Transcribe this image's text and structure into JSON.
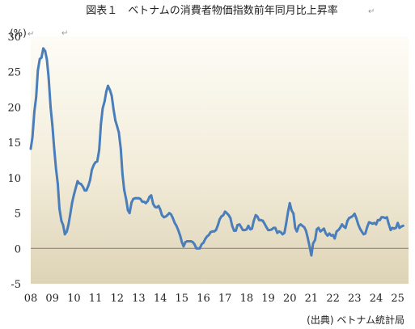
{
  "chart_data": {
    "type": "line",
    "title": "図表１　ベトナムの消費者物価指数前年同月比上昇率",
    "unit_label": "(%)",
    "source": "(出典) ベトナム統計局",
    "x_ticks": [
      "08",
      "09",
      "10",
      "11",
      "12",
      "13",
      "14",
      "15",
      "16",
      "17",
      "18",
      "19",
      "20",
      "21",
      "22",
      "23",
      "24",
      "25"
    ],
    "y_ticks": [
      "30",
      "25",
      "20",
      "15",
      "10",
      "5",
      "0",
      "-5"
    ],
    "ylim": [
      -5,
      30
    ],
    "xlim": [
      2008.0,
      2025.5
    ],
    "grid": false,
    "colors": {
      "line": "#4a7ebb",
      "panel_top": "#fdfcf6",
      "panel_bottom": "#ddd3b6"
    },
    "series": [
      {
        "values": [
          [
            2008.0,
            14.1
          ],
          [
            2008.08,
            15.7
          ],
          [
            2008.17,
            19.4
          ],
          [
            2008.25,
            21.4
          ],
          [
            2008.33,
            25.2
          ],
          [
            2008.42,
            26.8
          ],
          [
            2008.5,
            27.0
          ],
          [
            2008.58,
            28.3
          ],
          [
            2008.67,
            27.9
          ],
          [
            2008.75,
            26.7
          ],
          [
            2008.83,
            24.2
          ],
          [
            2008.92,
            19.9
          ],
          [
            2009.0,
            17.5
          ],
          [
            2009.08,
            14.4
          ],
          [
            2009.17,
            11.3
          ],
          [
            2009.25,
            9.2
          ],
          [
            2009.33,
            5.6
          ],
          [
            2009.42,
            3.9
          ],
          [
            2009.5,
            3.3
          ],
          [
            2009.58,
            2.0
          ],
          [
            2009.67,
            2.4
          ],
          [
            2009.75,
            3.4
          ],
          [
            2009.83,
            4.8
          ],
          [
            2009.92,
            6.5
          ],
          [
            2010.0,
            7.6
          ],
          [
            2010.08,
            8.5
          ],
          [
            2010.17,
            9.5
          ],
          [
            2010.25,
            9.2
          ],
          [
            2010.33,
            9.1
          ],
          [
            2010.42,
            8.7
          ],
          [
            2010.5,
            8.2
          ],
          [
            2010.58,
            8.2
          ],
          [
            2010.67,
            8.9
          ],
          [
            2010.75,
            9.7
          ],
          [
            2010.83,
            11.1
          ],
          [
            2010.92,
            11.8
          ],
          [
            2011.0,
            12.2
          ],
          [
            2011.08,
            12.3
          ],
          [
            2011.17,
            13.9
          ],
          [
            2011.25,
            17.5
          ],
          [
            2011.33,
            19.8
          ],
          [
            2011.42,
            20.8
          ],
          [
            2011.5,
            22.2
          ],
          [
            2011.58,
            23.0
          ],
          [
            2011.67,
            22.4
          ],
          [
            2011.75,
            21.6
          ],
          [
            2011.83,
            19.8
          ],
          [
            2011.92,
            18.1
          ],
          [
            2012.0,
            17.3
          ],
          [
            2012.08,
            16.4
          ],
          [
            2012.17,
            14.1
          ],
          [
            2012.25,
            10.5
          ],
          [
            2012.33,
            8.3
          ],
          [
            2012.42,
            6.9
          ],
          [
            2012.5,
            5.4
          ],
          [
            2012.58,
            5.0
          ],
          [
            2012.67,
            6.5
          ],
          [
            2012.75,
            7.0
          ],
          [
            2012.83,
            7.1
          ],
          [
            2012.92,
            7.1
          ],
          [
            2013.0,
            7.1
          ],
          [
            2013.08,
            7.0
          ],
          [
            2013.17,
            6.6
          ],
          [
            2013.25,
            6.6
          ],
          [
            2013.33,
            6.4
          ],
          [
            2013.42,
            6.7
          ],
          [
            2013.5,
            7.3
          ],
          [
            2013.58,
            7.5
          ],
          [
            2013.67,
            6.3
          ],
          [
            2013.75,
            5.9
          ],
          [
            2013.83,
            5.8
          ],
          [
            2013.92,
            6.0
          ],
          [
            2014.0,
            5.5
          ],
          [
            2014.08,
            4.7
          ],
          [
            2014.17,
            4.4
          ],
          [
            2014.25,
            4.5
          ],
          [
            2014.33,
            4.7
          ],
          [
            2014.42,
            5.0
          ],
          [
            2014.5,
            4.8
          ],
          [
            2014.58,
            4.3
          ],
          [
            2014.67,
            3.6
          ],
          [
            2014.75,
            3.2
          ],
          [
            2014.83,
            2.6
          ],
          [
            2014.92,
            1.8
          ],
          [
            2015.0,
            0.9
          ],
          [
            2015.08,
            0.3
          ],
          [
            2015.17,
            0.9
          ],
          [
            2015.25,
            1.0
          ],
          [
            2015.33,
            1.0
          ],
          [
            2015.42,
            1.0
          ],
          [
            2015.5,
            0.9
          ],
          [
            2015.58,
            0.6
          ],
          [
            2015.67,
            0.0
          ],
          [
            2015.75,
            0.0
          ],
          [
            2015.83,
            0.0
          ],
          [
            2015.92,
            0.6
          ],
          [
            2016.0,
            0.8
          ],
          [
            2016.08,
            1.3
          ],
          [
            2016.17,
            1.7
          ],
          [
            2016.25,
            1.9
          ],
          [
            2016.33,
            2.3
          ],
          [
            2016.42,
            2.4
          ],
          [
            2016.5,
            2.4
          ],
          [
            2016.58,
            2.6
          ],
          [
            2016.67,
            3.3
          ],
          [
            2016.75,
            4.1
          ],
          [
            2016.83,
            4.5
          ],
          [
            2016.92,
            4.7
          ],
          [
            2017.0,
            5.2
          ],
          [
            2017.08,
            5.0
          ],
          [
            2017.17,
            4.7
          ],
          [
            2017.25,
            4.3
          ],
          [
            2017.33,
            3.2
          ],
          [
            2017.42,
            2.5
          ],
          [
            2017.5,
            2.5
          ],
          [
            2017.58,
            3.3
          ],
          [
            2017.67,
            3.4
          ],
          [
            2017.75,
            3.0
          ],
          [
            2017.83,
            2.6
          ],
          [
            2017.92,
            2.6
          ],
          [
            2018.0,
            2.7
          ],
          [
            2018.08,
            3.2
          ],
          [
            2018.17,
            2.7
          ],
          [
            2018.25,
            2.8
          ],
          [
            2018.33,
            3.9
          ],
          [
            2018.42,
            4.7
          ],
          [
            2018.5,
            4.5
          ],
          [
            2018.58,
            4.0
          ],
          [
            2018.67,
            4.0
          ],
          [
            2018.75,
            3.9
          ],
          [
            2018.83,
            3.5
          ],
          [
            2018.92,
            3.0
          ],
          [
            2019.0,
            2.6
          ],
          [
            2019.08,
            2.6
          ],
          [
            2019.17,
            2.7
          ],
          [
            2019.25,
            2.9
          ],
          [
            2019.33,
            2.9
          ],
          [
            2019.42,
            2.2
          ],
          [
            2019.5,
            2.4
          ],
          [
            2019.58,
            2.3
          ],
          [
            2019.67,
            2.0
          ],
          [
            2019.75,
            2.2
          ],
          [
            2019.83,
            3.5
          ],
          [
            2019.92,
            5.2
          ],
          [
            2020.0,
            6.4
          ],
          [
            2020.08,
            5.4
          ],
          [
            2020.17,
            4.9
          ],
          [
            2020.25,
            2.9
          ],
          [
            2020.33,
            2.4
          ],
          [
            2020.42,
            3.2
          ],
          [
            2020.5,
            3.4
          ],
          [
            2020.58,
            3.2
          ],
          [
            2020.67,
            3.0
          ],
          [
            2020.75,
            2.5
          ],
          [
            2020.83,
            1.5
          ],
          [
            2020.92,
            0.2
          ],
          [
            2021.0,
            -1.0
          ],
          [
            2021.08,
            0.7
          ],
          [
            2021.17,
            1.2
          ],
          [
            2021.25,
            2.7
          ],
          [
            2021.33,
            2.9
          ],
          [
            2021.42,
            2.4
          ],
          [
            2021.5,
            2.6
          ],
          [
            2021.58,
            2.8
          ],
          [
            2021.67,
            2.1
          ],
          [
            2021.75,
            1.8
          ],
          [
            2021.83,
            2.1
          ],
          [
            2021.92,
            1.8
          ],
          [
            2022.0,
            1.9
          ],
          [
            2022.08,
            1.4
          ],
          [
            2022.17,
            2.4
          ],
          [
            2022.25,
            2.6
          ],
          [
            2022.33,
            2.9
          ],
          [
            2022.42,
            3.4
          ],
          [
            2022.5,
            3.1
          ],
          [
            2022.58,
            2.9
          ],
          [
            2022.67,
            3.9
          ],
          [
            2022.75,
            4.3
          ],
          [
            2022.83,
            4.4
          ],
          [
            2022.92,
            4.6
          ],
          [
            2023.0,
            4.9
          ],
          [
            2023.08,
            4.3
          ],
          [
            2023.17,
            3.4
          ],
          [
            2023.25,
            2.8
          ],
          [
            2023.33,
            2.4
          ],
          [
            2023.42,
            2.0
          ],
          [
            2023.5,
            2.1
          ],
          [
            2023.58,
            3.0
          ],
          [
            2023.67,
            3.7
          ],
          [
            2023.75,
            3.6
          ],
          [
            2023.83,
            3.5
          ],
          [
            2023.92,
            3.6
          ],
          [
            2024.0,
            3.4
          ],
          [
            2024.08,
            4.0
          ],
          [
            2024.17,
            4.0
          ],
          [
            2024.25,
            4.4
          ],
          [
            2024.33,
            4.4
          ],
          [
            2024.42,
            4.3
          ],
          [
            2024.5,
            4.4
          ],
          [
            2024.58,
            3.5
          ],
          [
            2024.67,
            2.6
          ],
          [
            2024.75,
            2.9
          ],
          [
            2024.83,
            2.8
          ],
          [
            2024.92,
            2.9
          ],
          [
            2025.0,
            3.6
          ],
          [
            2025.08,
            2.9
          ],
          [
            2025.17,
            3.1
          ],
          [
            2025.25,
            3.2
          ]
        ]
      }
    ]
  }
}
